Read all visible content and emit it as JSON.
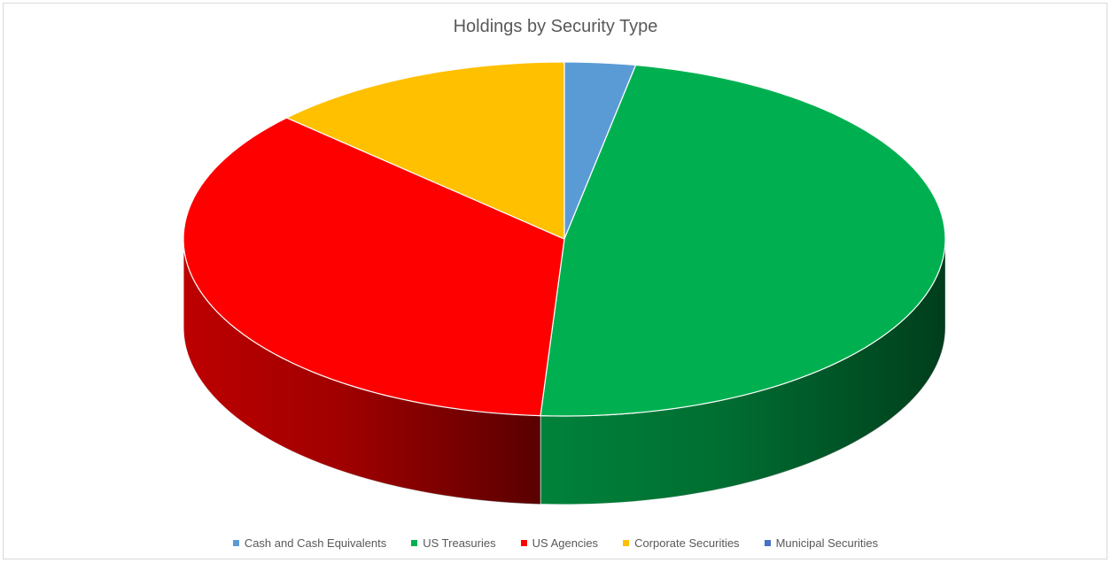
{
  "chart_data": {
    "type": "pie",
    "title": "Holdings by Security Type",
    "style": "3d",
    "legend_position": "bottom",
    "slices": [
      {
        "name": "Cash and Cash Equivalents",
        "value": 3,
        "color": "#5b9bd5"
      },
      {
        "name": "US Treasuries",
        "value": 48,
        "color": "#00b050"
      },
      {
        "name": "US Agencies",
        "value": 36,
        "color": "#ff0000"
      },
      {
        "name": "Corporate Securities",
        "value": 13,
        "color": "#ffc000"
      },
      {
        "name": "Municipal Securities",
        "value": 0,
        "color": "#4472c4"
      }
    ]
  }
}
